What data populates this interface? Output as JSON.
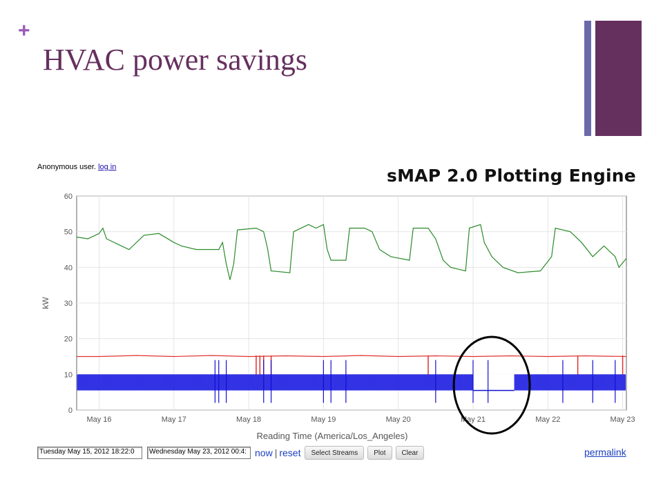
{
  "slide": {
    "bullet": "+",
    "title": "HVAC power savings"
  },
  "header": {
    "user_text": "Anonymous user.",
    "login_link": "log in",
    "engine_title": "sMAP 2.0 Plotting Engine"
  },
  "controls": {
    "start_time": "Tuesday May 15, 2012 18:22:0",
    "end_time": "Wednesday May 23, 2012 00:4:",
    "now_label": "now",
    "separator": "|",
    "reset_label": "reset",
    "select_streams_label": "Select Streams",
    "plot_label": "Plot",
    "clear_label": "Clear",
    "permalink_label": "permalink"
  },
  "chart_data": {
    "type": "line",
    "xlabel": "Reading Time (America/Los_Angeles)",
    "ylabel": "kW",
    "ylim": [
      0,
      60
    ],
    "yticks": [
      0,
      10,
      20,
      30,
      40,
      50,
      60
    ],
    "xlim": [
      15.7,
      23.05
    ],
    "xticks": [
      {
        "value": 16,
        "label": "May 16"
      },
      {
        "value": 17,
        "label": "May 17"
      },
      {
        "value": 18,
        "label": "May 18"
      },
      {
        "value": 19,
        "label": "May 19"
      },
      {
        "value": 20,
        "label": "May 20"
      },
      {
        "value": 21,
        "label": "May 21"
      },
      {
        "value": 22,
        "label": "May 22"
      },
      {
        "value": 23,
        "label": "May 23"
      }
    ],
    "grid": true,
    "series": [
      {
        "color": "#2a8a2a",
        "points": [
          [
            15.7,
            48.5
          ],
          [
            15.85,
            48
          ],
          [
            16.0,
            49.5
          ],
          [
            16.05,
            51
          ],
          [
            16.1,
            48
          ],
          [
            16.25,
            46.5
          ],
          [
            16.4,
            45
          ],
          [
            16.6,
            49
          ],
          [
            16.8,
            49.5
          ],
          [
            17.0,
            47
          ],
          [
            17.1,
            46
          ],
          [
            17.3,
            45
          ],
          [
            17.6,
            45
          ],
          [
            17.65,
            47
          ],
          [
            17.7,
            41
          ],
          [
            17.75,
            36.5
          ],
          [
            17.8,
            41
          ],
          [
            17.85,
            50.5
          ],
          [
            18.1,
            51
          ],
          [
            18.2,
            50
          ],
          [
            18.25,
            45.5
          ],
          [
            18.3,
            39
          ],
          [
            18.55,
            38.5
          ],
          [
            18.6,
            50
          ],
          [
            18.8,
            52
          ],
          [
            18.9,
            51
          ],
          [
            19.0,
            52
          ],
          [
            19.05,
            45
          ],
          [
            19.1,
            42
          ],
          [
            19.3,
            42
          ],
          [
            19.35,
            51
          ],
          [
            19.55,
            51
          ],
          [
            19.65,
            50
          ],
          [
            19.75,
            45
          ],
          [
            19.9,
            43
          ],
          [
            20.15,
            42
          ],
          [
            20.2,
            51
          ],
          [
            20.4,
            51
          ],
          [
            20.5,
            48
          ],
          [
            20.6,
            42
          ],
          [
            20.7,
            40
          ],
          [
            20.8,
            39.5
          ],
          [
            20.9,
            39
          ],
          [
            20.95,
            51
          ],
          [
            21.1,
            52
          ],
          [
            21.15,
            47
          ],
          [
            21.25,
            43
          ],
          [
            21.4,
            40
          ],
          [
            21.6,
            38.5
          ],
          [
            21.9,
            39
          ],
          [
            22.05,
            43
          ],
          [
            22.1,
            51
          ],
          [
            22.3,
            50
          ],
          [
            22.45,
            47
          ],
          [
            22.6,
            43
          ],
          [
            22.75,
            46
          ],
          [
            22.9,
            43
          ],
          [
            22.95,
            40
          ],
          [
            23.05,
            42.5
          ]
        ]
      },
      {
        "color": "#e03030",
        "points": [
          [
            15.7,
            15
          ],
          [
            16.0,
            15
          ],
          [
            16.5,
            15.3
          ],
          [
            17.0,
            15
          ],
          [
            17.5,
            15.3
          ],
          [
            18.0,
            15
          ],
          [
            18.5,
            15.2
          ],
          [
            19.0,
            15
          ],
          [
            19.5,
            15.3
          ],
          [
            20.0,
            15
          ],
          [
            20.5,
            15.2
          ],
          [
            21.0,
            15
          ],
          [
            21.5,
            15.2
          ],
          [
            22.0,
            15
          ],
          [
            22.5,
            15.2
          ],
          [
            23.05,
            15
          ]
        ]
      },
      {
        "color": "#1010d0",
        "points": [
          [
            15.7,
            5.5
          ],
          [
            15.72,
            10
          ],
          [
            23.05,
            10
          ],
          [
            23.05,
            5.5
          ]
        ]
      }
    ],
    "annotations": [
      {
        "type": "ellipse",
        "x_center": 21.25,
        "y_center": 6.2,
        "color": "#000000"
      }
    ]
  }
}
